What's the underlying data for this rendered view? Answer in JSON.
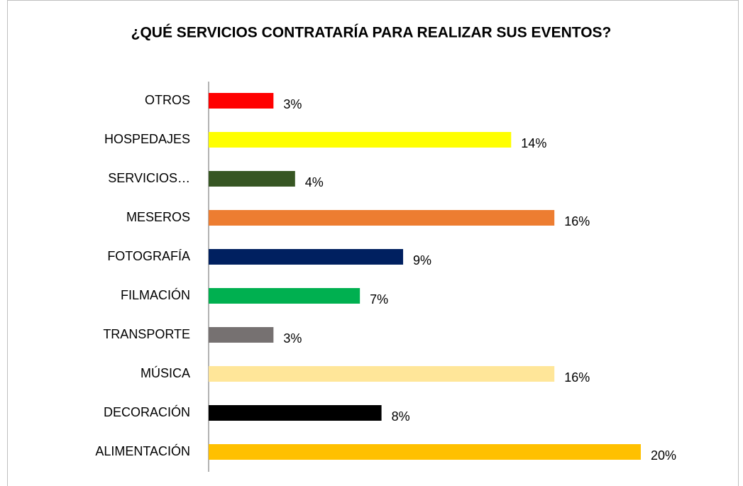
{
  "chart_data": {
    "type": "bar",
    "orientation": "horizontal",
    "title": "¿QUÉ SERVICIOS CONTRATARÍA PARA REALIZAR SUS EVENTOS?",
    "categories": [
      "OTROS",
      "HOSPEDAJES",
      "SERVICIOS…",
      "MESEROS",
      "FOTOGRAFÍA",
      "FILMACIÓN",
      "TRANSPORTE",
      "MÚSICA",
      "DECORACIÓN",
      "ALIMENTACIÓN"
    ],
    "values": [
      3,
      14,
      4,
      16,
      9,
      7,
      3,
      16,
      8,
      20
    ],
    "value_labels": [
      "3%",
      "14%",
      "4%",
      "16%",
      "9%",
      "7%",
      "3%",
      "16%",
      "8%",
      "20%"
    ],
    "colors": [
      "#ff0000",
      "#ffff00",
      "#375623",
      "#ed7d31",
      "#002060",
      "#00b050",
      "#767171",
      "#ffe699",
      "#000000",
      "#ffc000"
    ]
  }
}
